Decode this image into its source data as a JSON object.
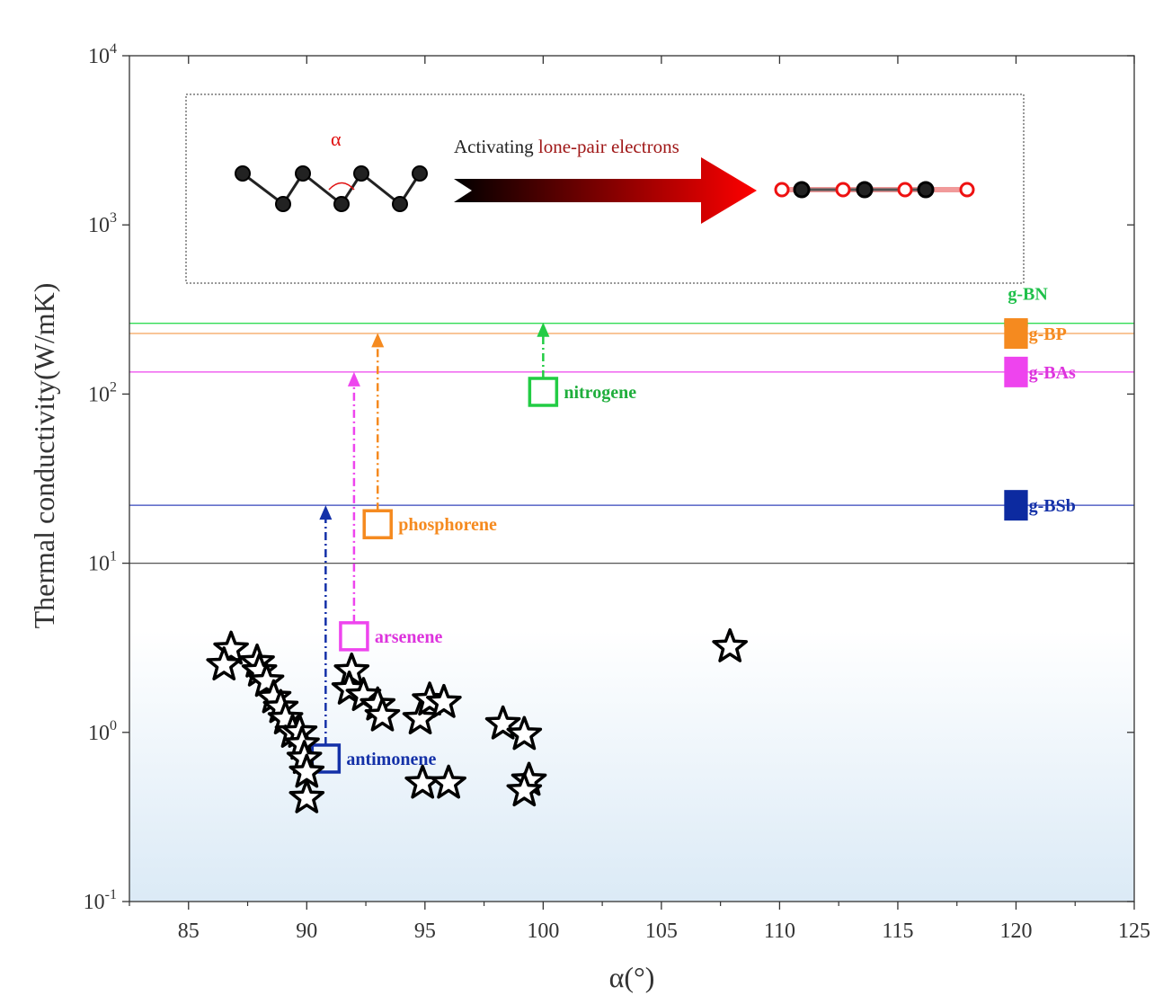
{
  "chart_data": {
    "type": "scatter",
    "xlabel": "α(°)",
    "ylabel": "Thermal conductivity(W/mK)",
    "xlim": [
      82.5,
      125
    ],
    "ylim": [
      0.1,
      10000
    ],
    "yscale": "log",
    "x_ticks": [
      "85",
      "90",
      "95",
      "100",
      "105",
      "110",
      "115",
      "120",
      "125"
    ],
    "x_tick_values": [
      85,
      90,
      95,
      100,
      105,
      110,
      115,
      120,
      125
    ],
    "y_tick_values": [
      0.1,
      1,
      10,
      100,
      1000,
      10000
    ],
    "y_tick_base": "10",
    "y_tick_exponents": [
      "-1",
      "0",
      "1",
      "2",
      "3",
      "4"
    ],
    "grid": false,
    "shaded_region": {
      "y_max": 4,
      "color_top": "#ffffff",
      "color_bottom": "#dbeaf6"
    },
    "threshold_line": {
      "y": 10,
      "color": "#555555"
    },
    "stars": [
      {
        "x": 86.8,
        "y": 3.1
      },
      {
        "x": 86.5,
        "y": 2.5
      },
      {
        "x": 87.9,
        "y": 2.6
      },
      {
        "x": 88.0,
        "y": 2.3
      },
      {
        "x": 88.3,
        "y": 2.0
      },
      {
        "x": 88.6,
        "y": 1.6
      },
      {
        "x": 88.9,
        "y": 1.4
      },
      {
        "x": 89.1,
        "y": 1.2
      },
      {
        "x": 89.4,
        "y": 1.0
      },
      {
        "x": 89.7,
        "y": 1.0
      },
      {
        "x": 89.8,
        "y": 0.85
      },
      {
        "x": 89.9,
        "y": 0.7
      },
      {
        "x": 90.0,
        "y": 0.58
      },
      {
        "x": 90.0,
        "y": 0.41
      },
      {
        "x": 91.9,
        "y": 2.3
      },
      {
        "x": 91.8,
        "y": 1.8
      },
      {
        "x": 92.4,
        "y": 1.65
      },
      {
        "x": 93.0,
        "y": 1.45
      },
      {
        "x": 93.2,
        "y": 1.25
      },
      {
        "x": 94.8,
        "y": 1.2
      },
      {
        "x": 95.2,
        "y": 1.55
      },
      {
        "x": 95.8,
        "y": 1.5
      },
      {
        "x": 94.9,
        "y": 0.5
      },
      {
        "x": 96.0,
        "y": 0.5
      },
      {
        "x": 98.3,
        "y": 1.12
      },
      {
        "x": 99.2,
        "y": 0.97
      },
      {
        "x": 99.4,
        "y": 0.52
      },
      {
        "x": 99.2,
        "y": 0.45
      },
      {
        "x": 107.9,
        "y": 3.2
      }
    ],
    "materials": [
      {
        "label": "antimonene",
        "x": 90.8,
        "y": 0.7,
        "target_y": 22,
        "color": "#1431a8",
        "label_color": "#1431a8"
      },
      {
        "label": "arsenene",
        "x": 92.0,
        "y": 3.7,
        "target_y": 135,
        "color": "#ee44ee",
        "label_color": "#dd33dd"
      },
      {
        "label": "phosphorene",
        "x": 93.0,
        "y": 17,
        "target_y": 230,
        "color": "#f58a1f",
        "label_color": "#f58a1f"
      },
      {
        "label": "nitrogene",
        "x": 100.0,
        "y": 103,
        "target_y": 265,
        "color": "#22cc44",
        "label_color": "#1fae3c"
      }
    ],
    "references": [
      {
        "label": "g-BN",
        "y": 262,
        "color": "#33dd55",
        "bar_color": "#14b93a",
        "label_color": "#1fc04a"
      },
      {
        "label": "g-BP",
        "y": 228,
        "color": "#f5a55a",
        "bar_color": "#f58a1f",
        "label_color": "#f58a1f"
      },
      {
        "label": "g-BAs",
        "y": 135,
        "color": "#ee44ee",
        "bar_color": "#ee44ee",
        "label_color": "#dd33dd"
      },
      {
        "label": "g-BSb",
        "y": 22,
        "color": "#3344bb",
        "bar_color": "#0c2aa0",
        "label_color": "#1431a8"
      }
    ],
    "inset": {
      "text_prefix": "Activating ",
      "text_highlight": "lone-pair electrons",
      "alpha_label": "α",
      "arrow_start_color": "#000000",
      "arrow_end_color": "#ff0000"
    }
  }
}
